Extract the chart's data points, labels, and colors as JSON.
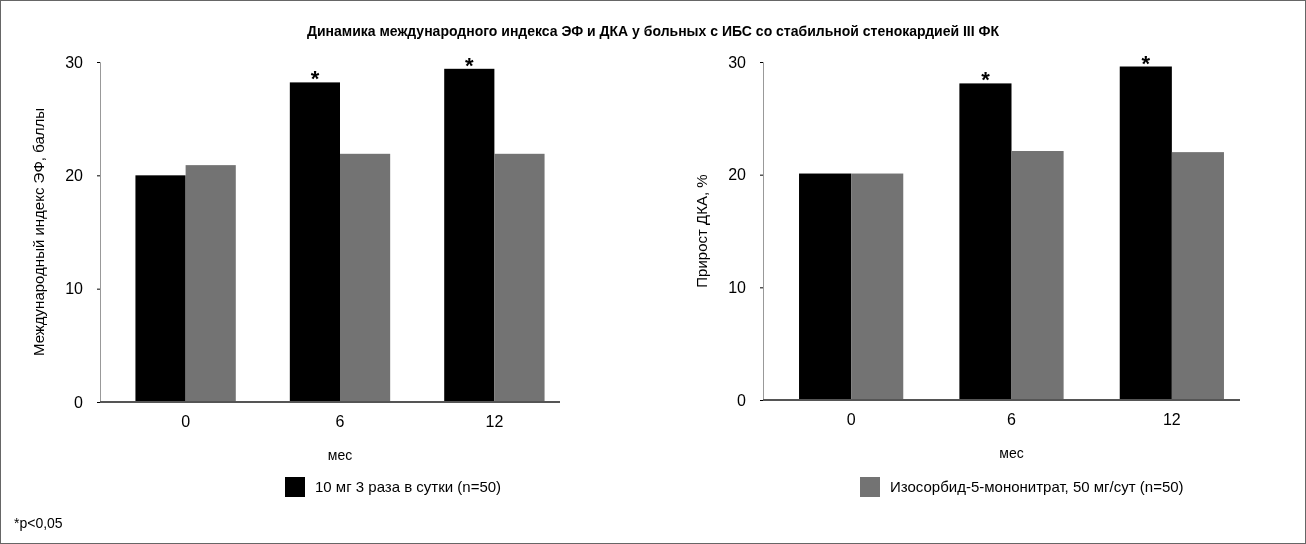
{
  "chart_data": [
    {
      "type": "bar",
      "title": "Динамика международного индекса ЭФ и ДКА у больных с ИБС со стабильной стенокардией III ФК",
      "xlabel": "мес",
      "ylabel": "Международный индекс ЭФ, баллы",
      "categories": [
        "0",
        "6",
        "12"
      ],
      "ylim": [
        0,
        30
      ],
      "yticks": [
        0,
        10,
        20,
        30
      ],
      "legend": "bottom",
      "series": [
        {
          "name": "10 мг 3 раза в сутки (n=50)",
          "color": "#000000",
          "values": [
            20.0,
            28.2,
            29.4
          ]
        },
        {
          "name": "Изосорбид-5-мононитрат, 50 мг/сут (n=50)",
          "color": "#737373",
          "values": [
            20.9,
            21.9,
            21.9
          ]
        }
      ],
      "annotations": [
        {
          "text": "*",
          "x": "6",
          "y": 28.2
        },
        {
          "text": "*",
          "x": "12",
          "y": 29.4
        },
        "*p<0,05"
      ]
    },
    {
      "type": "bar",
      "xlabel": "мес",
      "ylabel": "Прирост ДКА, %",
      "categories": [
        "0",
        "6",
        "12"
      ],
      "ylim": [
        0,
        30
      ],
      "yticks": [
        0,
        10,
        20,
        30
      ],
      "series": [
        {
          "color": "#000000",
          "values": [
            20.1,
            28.1,
            29.6
          ]
        },
        {
          "color": "#737373",
          "values": [
            20.1,
            22.1,
            22.0
          ]
        }
      ],
      "annotations": [
        {
          "text": "*",
          "x": "6",
          "y": 28.1
        },
        {
          "text": "*",
          "x": "12",
          "y": 29.6
        }
      ]
    }
  ]
}
